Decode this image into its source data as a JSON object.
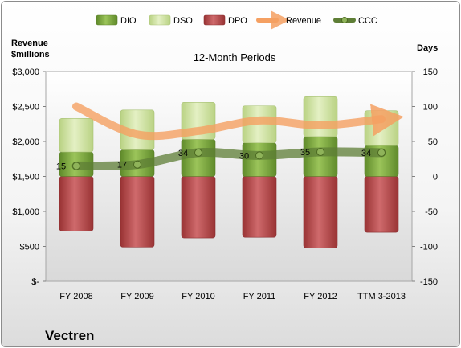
{
  "chart_data": {
    "type": "bar",
    "title": "12-Month Periods",
    "company": "Vectren",
    "y_left_label": [
      "Revenue",
      "$millions"
    ],
    "y_right_label": "Days",
    "y_left_ticks": [
      "$3,000",
      "$2,500",
      "$2,000",
      "$1,500",
      "$1,000",
      "$500",
      "$-"
    ],
    "y_right_ticks": [
      "150",
      "100",
      "50",
      "0",
      "-50",
      "-100",
      "-150"
    ],
    "ylim_left": [
      0,
      3000
    ],
    "ylim_right": [
      -150,
      150
    ],
    "categories": [
      "FY 2008",
      "FY 2009",
      "FY 2010",
      "FY 2011",
      "FY 2012",
      "TTM 3-2013"
    ],
    "legend": [
      "DIO",
      "DSO",
      "DPO",
      "Revenue",
      "CCC"
    ],
    "series": [
      {
        "name": "DIO",
        "axis": "right",
        "values": [
          35,
          38,
          53,
          48,
          57,
          44
        ],
        "color": "#77a33c"
      },
      {
        "name": "DSO",
        "axis": "right",
        "values": [
          48,
          57,
          53,
          53,
          57,
          50
        ],
        "color": "#cfe2a0"
      },
      {
        "name": "DPO",
        "axis": "right",
        "values": [
          -78,
          -101,
          -88,
          -87,
          -102,
          -80
        ],
        "color": "#b5474a"
      },
      {
        "name": "Revenue",
        "axis": "left",
        "values": [
          2500,
          2100,
          2150,
          2300,
          2230,
          2320
        ],
        "color": "#f5a062"
      },
      {
        "name": "CCC",
        "axis": "right",
        "values": [
          15,
          17,
          34,
          30,
          35,
          34
        ],
        "color": "#5e7e36"
      }
    ],
    "ccc_labels": [
      "15",
      "17",
      "34",
      "30",
      "35",
      "34"
    ],
    "grid": false,
    "legend_position": "top"
  }
}
